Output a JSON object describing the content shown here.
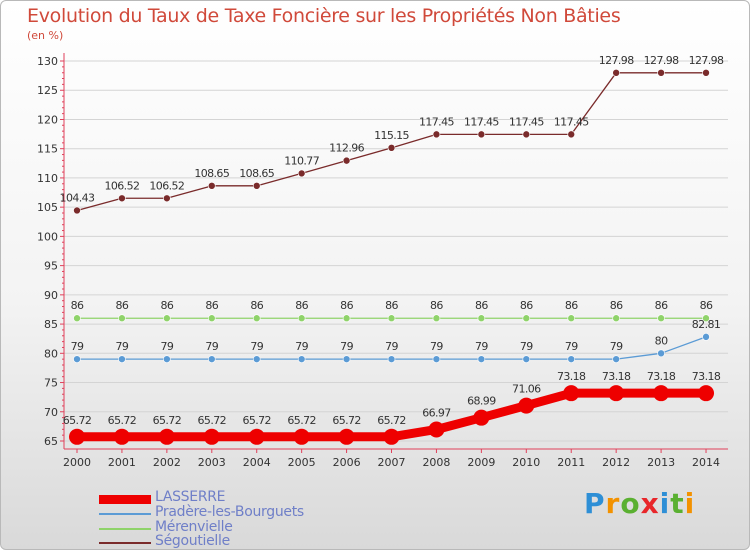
{
  "title": "Evolution du Taux de Taxe Foncière sur les Propriétés Non Bâties",
  "unit": "(en %)",
  "brand": {
    "letters": [
      "P",
      "r",
      "o",
      "x",
      "i",
      "t",
      "i"
    ],
    "colors": [
      "#2e8fd6",
      "#f39200",
      "#5ab031",
      "#e8262a",
      "#2e8fd6",
      "#5ab031",
      "#f39200"
    ]
  },
  "chart_data": {
    "type": "line",
    "x": [
      "2000",
      "2001",
      "2002",
      "2003",
      "2004",
      "2005",
      "2006",
      "2007",
      "2008",
      "2009",
      "2010",
      "2011",
      "2012",
      "2013",
      "2014"
    ],
    "ylim": [
      65,
      130
    ],
    "yticks": [
      "65",
      "70",
      "75",
      "80",
      "85",
      "90",
      "95",
      "100",
      "105",
      "110",
      "115",
      "120",
      "125",
      "130"
    ],
    "grid": true,
    "legend_position": "bottom-left",
    "series": [
      {
        "name": "LASSERRE",
        "color": "#ee0000",
        "width": 9,
        "marker": 8,
        "values": [
          65.72,
          65.72,
          65.72,
          65.72,
          65.72,
          65.72,
          65.72,
          65.72,
          66.97,
          68.99,
          71.06,
          73.18,
          73.18,
          73.18,
          73.18
        ],
        "labels": [
          "65.72",
          "65.72",
          "65.72",
          "65.72",
          "65.72",
          "65.72",
          "65.72",
          "65.72",
          "66.97",
          "68.99",
          "71.06",
          "73.18",
          "73.18",
          "73.18",
          "73.18"
        ]
      },
      {
        "name": "Pradère-les-Bourguets",
        "color": "#5b9bd5",
        "width": 1.3,
        "marker": 3.5,
        "values": [
          79,
          79,
          79,
          79,
          79,
          79,
          79,
          79,
          79,
          79,
          79,
          79,
          79,
          80,
          82.81
        ],
        "labels": [
          "79",
          "79",
          "79",
          "79",
          "79",
          "79",
          "79",
          "79",
          "79",
          "79",
          "79",
          "79",
          "79",
          "80",
          "82.81"
        ]
      },
      {
        "name": "Mérenvielle",
        "color": "#8fd36a",
        "width": 1.3,
        "marker": 3.5,
        "values": [
          86,
          86,
          86,
          86,
          86,
          86,
          86,
          86,
          86,
          86,
          86,
          86,
          86,
          86,
          86
        ],
        "labels": [
          "86",
          "86",
          "86",
          "86",
          "86",
          "86",
          "86",
          "86",
          "86",
          "86",
          "86",
          "86",
          "86",
          "86",
          "86"
        ]
      },
      {
        "name": "Ségoutielle",
        "color": "#7a2b2b",
        "width": 1.3,
        "marker": 3.5,
        "values": [
          104.43,
          106.52,
          106.52,
          108.65,
          108.65,
          110.77,
          112.96,
          115.15,
          117.45,
          117.45,
          117.45,
          117.45,
          127.98,
          127.98,
          127.98
        ],
        "labels": [
          "104.43",
          "106.52",
          "106.52",
          "108.65",
          "108.65",
          "110.77",
          "112.96",
          "115.15",
          "117.45",
          "117.45",
          "117.45",
          "117.45",
          "127.98",
          "127.98",
          "127.98"
        ]
      }
    ]
  }
}
